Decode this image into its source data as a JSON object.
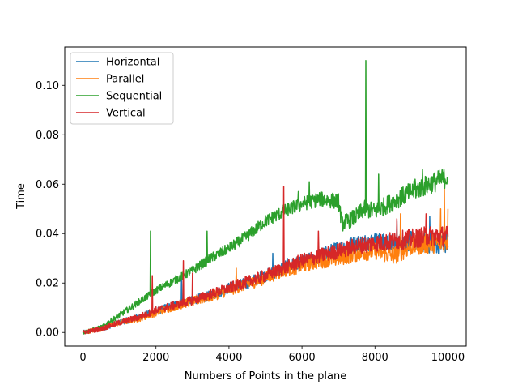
{
  "chart_data": {
    "type": "line",
    "title": "",
    "xlabel": "Numbers of Points in the plane",
    "ylabel": "Time",
    "xlim": [
      -500,
      10500
    ],
    "ylim": [
      -0.0055,
      0.1155
    ],
    "xticks": [
      0,
      2000,
      4000,
      6000,
      8000,
      10000
    ],
    "xtick_labels": [
      "0",
      "2000",
      "4000",
      "6000",
      "8000",
      "10000"
    ],
    "yticks": [
      0.0,
      0.02,
      0.04,
      0.06,
      0.08,
      0.1
    ],
    "ytick_labels": [
      "0.00",
      "0.02",
      "0.04",
      "0.06",
      "0.08",
      "0.10"
    ],
    "grid": false,
    "legend_position": "top-left",
    "series": [
      {
        "name": "Horizontal",
        "color": "#1f77b4",
        "points": [
          [
            0,
            0.0
          ],
          [
            500,
            0.0015
          ],
          [
            1000,
            0.004
          ],
          [
            1500,
            0.006
          ],
          [
            2000,
            0.0085
          ],
          [
            2500,
            0.011
          ],
          [
            3000,
            0.013
          ],
          [
            3500,
            0.015
          ],
          [
            4000,
            0.018
          ],
          [
            4500,
            0.02
          ],
          [
            5000,
            0.023
          ],
          [
            5500,
            0.026
          ],
          [
            6000,
            0.028
          ],
          [
            6500,
            0.031
          ],
          [
            7000,
            0.034
          ],
          [
            7500,
            0.036
          ],
          [
            8000,
            0.037
          ],
          [
            8500,
            0.036
          ],
          [
            9000,
            0.037
          ],
          [
            9500,
            0.036
          ],
          [
            10000,
            0.036
          ]
        ],
        "spikes": [
          [
            2700,
            0.022
          ],
          [
            5200,
            0.032
          ],
          [
            5600,
            0.03
          ],
          [
            8600,
            0.045
          ],
          [
            9500,
            0.047
          ]
        ]
      },
      {
        "name": "Parallel",
        "color": "#ff7f0e",
        "points": [
          [
            0,
            0.0
          ],
          [
            500,
            0.0015
          ],
          [
            1000,
            0.004
          ],
          [
            1500,
            0.0055
          ],
          [
            2000,
            0.008
          ],
          [
            2500,
            0.0105
          ],
          [
            3000,
            0.0125
          ],
          [
            3500,
            0.0145
          ],
          [
            4000,
            0.017
          ],
          [
            4500,
            0.0195
          ],
          [
            5000,
            0.022
          ],
          [
            5500,
            0.025
          ],
          [
            6000,
            0.027
          ],
          [
            6500,
            0.029
          ],
          [
            7000,
            0.03
          ],
          [
            7500,
            0.032
          ],
          [
            8000,
            0.033
          ],
          [
            8500,
            0.031
          ],
          [
            9000,
            0.035
          ],
          [
            9500,
            0.036
          ],
          [
            10000,
            0.037
          ]
        ],
        "spikes": [
          [
            4200,
            0.026
          ],
          [
            8700,
            0.048
          ],
          [
            9800,
            0.05
          ],
          [
            9900,
            0.061
          ],
          [
            10000,
            0.05
          ]
        ]
      },
      {
        "name": "Sequential",
        "color": "#2ca02c",
        "points": [
          [
            0,
            0.0
          ],
          [
            500,
            0.002
          ],
          [
            1000,
            0.007
          ],
          [
            1500,
            0.012
          ],
          [
            2000,
            0.017
          ],
          [
            2500,
            0.021
          ],
          [
            3000,
            0.025
          ],
          [
            3500,
            0.03
          ],
          [
            4000,
            0.034
          ],
          [
            4500,
            0.039
          ],
          [
            5000,
            0.045
          ],
          [
            5500,
            0.049
          ],
          [
            6000,
            0.052
          ],
          [
            6500,
            0.054
          ],
          [
            7000,
            0.053
          ],
          [
            7100,
            0.044
          ],
          [
            7500,
            0.047
          ],
          [
            7700,
            0.05
          ],
          [
            8000,
            0.049
          ],
          [
            8500,
            0.053
          ],
          [
            9000,
            0.057
          ],
          [
            9500,
            0.06
          ],
          [
            10000,
            0.063
          ]
        ],
        "spikes": [
          [
            1850,
            0.041
          ],
          [
            3400,
            0.041
          ],
          [
            5900,
            0.057
          ],
          [
            6200,
            0.061
          ],
          [
            7750,
            0.11
          ],
          [
            8100,
            0.064
          ],
          [
            9100,
            0.062
          ],
          [
            9300,
            0.066
          ]
        ]
      },
      {
        "name": "Vertical",
        "color": "#d62728",
        "points": [
          [
            0,
            0.0
          ],
          [
            500,
            0.0015
          ],
          [
            1000,
            0.004
          ],
          [
            1500,
            0.006
          ],
          [
            2000,
            0.009
          ],
          [
            2500,
            0.011
          ],
          [
            3000,
            0.013
          ],
          [
            3500,
            0.0155
          ],
          [
            4000,
            0.018
          ],
          [
            4500,
            0.0205
          ],
          [
            5000,
            0.023
          ],
          [
            5500,
            0.026
          ],
          [
            6000,
            0.029
          ],
          [
            6500,
            0.031
          ],
          [
            7000,
            0.033
          ],
          [
            7500,
            0.035
          ],
          [
            8000,
            0.036
          ],
          [
            8500,
            0.037
          ],
          [
            9000,
            0.038
          ],
          [
            9500,
            0.039
          ],
          [
            10000,
            0.039
          ]
        ],
        "spikes": [
          [
            1900,
            0.023
          ],
          [
            2750,
            0.029
          ],
          [
            3000,
            0.024
          ],
          [
            5500,
            0.059
          ],
          [
            6450,
            0.041
          ],
          [
            8600,
            0.046
          ],
          [
            9400,
            0.048
          ]
        ]
      }
    ]
  }
}
